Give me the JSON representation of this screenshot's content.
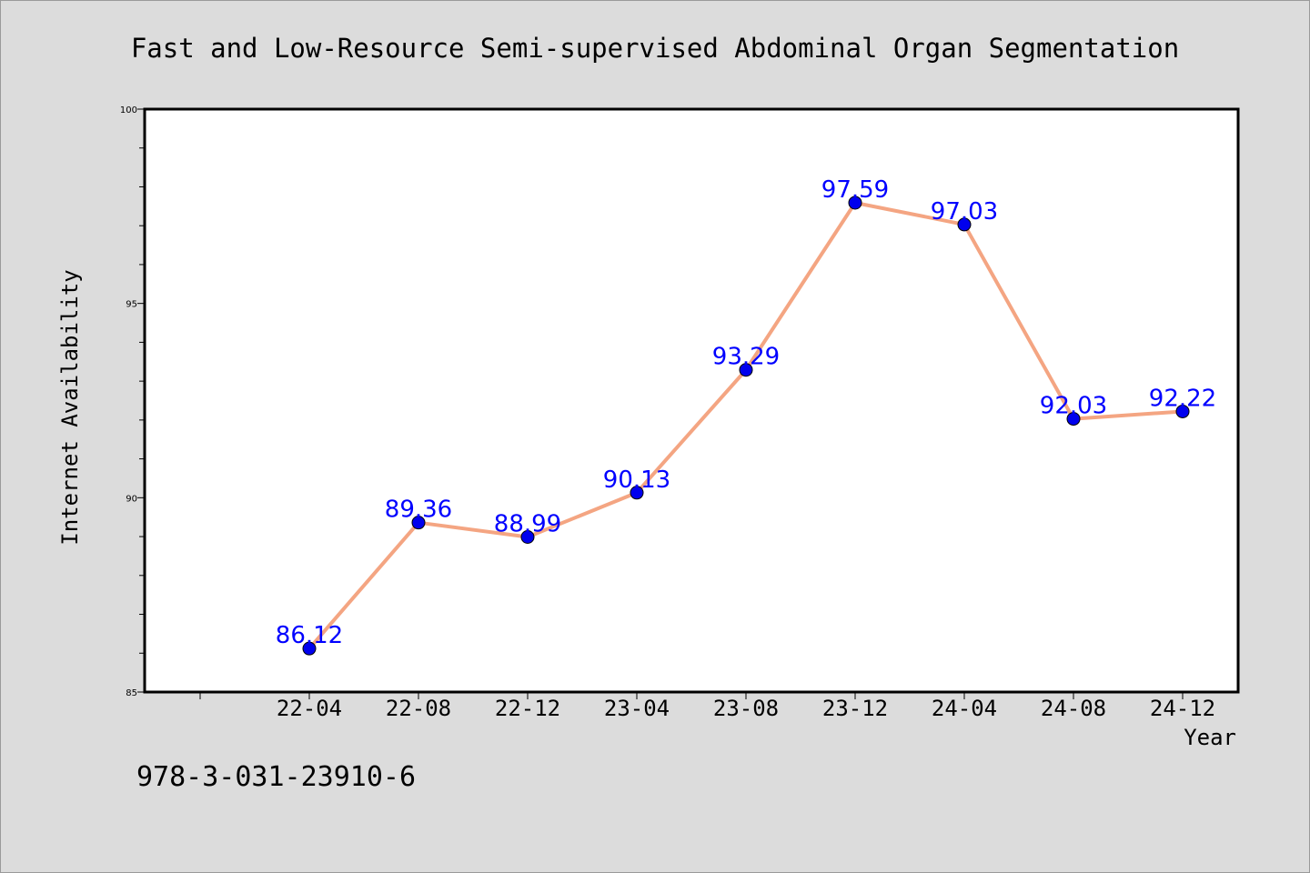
{
  "chart_data": {
    "type": "line",
    "title": "Fast and Low-Resource Semi-supervised Abdominal Organ Segmentation",
    "xlabel": "Year",
    "ylabel": "Internet Availability",
    "ylim": [
      85,
      100
    ],
    "yticks": [
      85,
      90,
      95,
      100
    ],
    "categories": [
      "22-04",
      "22-08",
      "22-12",
      "23-04",
      "23-08",
      "23-12",
      "24-04",
      "24-08",
      "24-12"
    ],
    "values": [
      86.12,
      89.36,
      88.99,
      90.13,
      93.29,
      97.59,
      97.03,
      92.03,
      92.22
    ],
    "data_labels": [
      "86.12",
      "89.36",
      "88.99",
      "90.13",
      "93.29",
      "97.59",
      "97.03",
      "92.03",
      "92.22"
    ],
    "grid": false,
    "legend": "none",
    "colors": {
      "line": "#f4a582",
      "marker": "#0000ee",
      "data_label": "#0000ff",
      "background": "#dcdcdc",
      "plot_background": "#ffffff"
    }
  },
  "footer": {
    "isbn": "978-3-031-23910-6"
  }
}
